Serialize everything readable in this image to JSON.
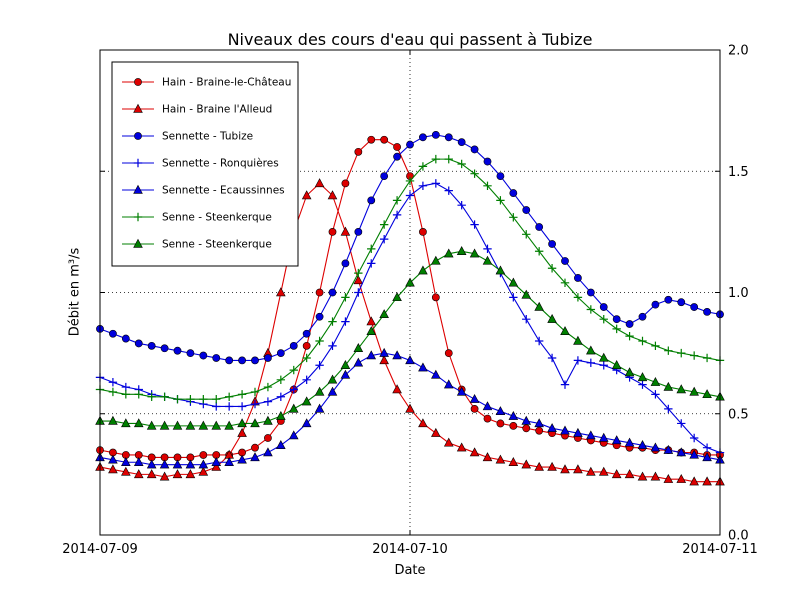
{
  "chart_data": {
    "type": "line",
    "title": "Niveaux des cours d'eau qui passent à Tubize",
    "xlabel": "Date",
    "ylabel": "Débit en m³/s",
    "ylim": [
      0.0,
      2.0
    ],
    "yticks": [
      0.0,
      0.5,
      1.0,
      1.5,
      2.0
    ],
    "ytick_labels": [
      "0.0",
      "0.5",
      "1.0",
      "1.5",
      "2.0"
    ],
    "ytick_label_side": "right",
    "xtick_labels": [
      "2014-07-09",
      "2014-07-10",
      "2014-07-11"
    ],
    "xtick_positions_hours": [
      0,
      24,
      48
    ],
    "x_start": "2014-07-09 00:00",
    "x_unit": "hours",
    "grid": {
      "style": "dotted",
      "vertical_at_hours": [
        24
      ],
      "horizontal_at": [
        0.5,
        1.0,
        1.5
      ]
    },
    "legend": {
      "position": "upper-left",
      "border_color": "#000000",
      "background": "#ffffff"
    },
    "colors": {
      "red": "#dd0000",
      "blue": "#0000dd",
      "green": "#007f00",
      "axis": "#000000",
      "background": "#ffffff"
    },
    "x_hours": [
      0,
      1,
      2,
      3,
      4,
      5,
      6,
      7,
      8,
      9,
      10,
      11,
      12,
      13,
      14,
      15,
      16,
      17,
      18,
      19,
      20,
      21,
      22,
      23,
      24,
      25,
      26,
      27,
      28,
      29,
      30,
      31,
      32,
      33,
      34,
      35,
      36,
      37,
      38,
      39,
      40,
      41,
      42,
      43,
      44,
      45,
      46,
      47,
      48
    ],
    "series": [
      {
        "name": "Hain - Braine-le-Château",
        "color": "#dd0000",
        "marker": "circle",
        "values": [
          0.35,
          0.34,
          0.33,
          0.33,
          0.32,
          0.32,
          0.32,
          0.32,
          0.33,
          0.33,
          0.33,
          0.34,
          0.36,
          0.4,
          0.47,
          0.6,
          0.78,
          1.0,
          1.25,
          1.45,
          1.58,
          1.63,
          1.63,
          1.6,
          1.48,
          1.25,
          0.98,
          0.75,
          0.6,
          0.52,
          0.48,
          0.46,
          0.45,
          0.44,
          0.43,
          0.42,
          0.41,
          0.4,
          0.39,
          0.38,
          0.37,
          0.36,
          0.36,
          0.35,
          0.35,
          0.34,
          0.34,
          0.33,
          0.33
        ]
      },
      {
        "name": "Hain - Braine l'Alleud",
        "color": "#dd0000",
        "marker": "triangle",
        "values": [
          0.28,
          0.27,
          0.26,
          0.25,
          0.25,
          0.24,
          0.25,
          0.25,
          0.26,
          0.28,
          0.33,
          0.42,
          0.55,
          0.75,
          1.0,
          1.25,
          1.4,
          1.45,
          1.4,
          1.25,
          1.05,
          0.88,
          0.72,
          0.6,
          0.52,
          0.46,
          0.42,
          0.38,
          0.36,
          0.34,
          0.32,
          0.31,
          0.3,
          0.29,
          0.28,
          0.28,
          0.27,
          0.27,
          0.26,
          0.26,
          0.25,
          0.25,
          0.24,
          0.24,
          0.23,
          0.23,
          0.22,
          0.22,
          0.22
        ]
      },
      {
        "name": "Sennette - Tubize",
        "color": "#0000dd",
        "marker": "circle",
        "values": [
          0.85,
          0.83,
          0.81,
          0.79,
          0.78,
          0.77,
          0.76,
          0.75,
          0.74,
          0.73,
          0.72,
          0.72,
          0.72,
          0.73,
          0.75,
          0.78,
          0.83,
          0.9,
          1.0,
          1.12,
          1.25,
          1.38,
          1.48,
          1.56,
          1.61,
          1.64,
          1.65,
          1.64,
          1.62,
          1.59,
          1.54,
          1.48,
          1.41,
          1.34,
          1.27,
          1.2,
          1.13,
          1.06,
          1.0,
          0.94,
          0.89,
          0.87,
          0.9,
          0.95,
          0.97,
          0.96,
          0.94,
          0.92,
          0.91
        ]
      },
      {
        "name": "Sennette - Ronquières",
        "color": "#0000dd",
        "marker": "plus",
        "values": [
          0.65,
          0.63,
          0.61,
          0.6,
          0.58,
          0.57,
          0.56,
          0.55,
          0.54,
          0.53,
          0.53,
          0.53,
          0.54,
          0.55,
          0.57,
          0.6,
          0.64,
          0.7,
          0.78,
          0.88,
          1.0,
          1.12,
          1.22,
          1.32,
          1.4,
          1.44,
          1.45,
          1.42,
          1.36,
          1.28,
          1.18,
          1.08,
          0.98,
          0.89,
          0.8,
          0.73,
          0.62,
          0.72,
          0.71,
          0.7,
          0.68,
          0.65,
          0.62,
          0.58,
          0.52,
          0.46,
          0.4,
          0.36,
          0.34
        ]
      },
      {
        "name": "Sennette - Ecaussinnes",
        "color": "#0000dd",
        "marker": "triangle",
        "values": [
          0.32,
          0.31,
          0.3,
          0.3,
          0.29,
          0.29,
          0.29,
          0.29,
          0.29,
          0.3,
          0.3,
          0.31,
          0.32,
          0.34,
          0.37,
          0.41,
          0.46,
          0.52,
          0.59,
          0.66,
          0.71,
          0.74,
          0.75,
          0.74,
          0.72,
          0.69,
          0.66,
          0.62,
          0.59,
          0.56,
          0.53,
          0.51,
          0.49,
          0.47,
          0.46,
          0.44,
          0.43,
          0.42,
          0.41,
          0.4,
          0.39,
          0.38,
          0.37,
          0.36,
          0.35,
          0.34,
          0.33,
          0.32,
          0.31
        ]
      },
      {
        "name": "Senne - Steenkerque",
        "color": "#007f00",
        "marker": "plus",
        "values": [
          0.6,
          0.59,
          0.58,
          0.58,
          0.57,
          0.57,
          0.56,
          0.56,
          0.56,
          0.56,
          0.57,
          0.58,
          0.59,
          0.61,
          0.64,
          0.68,
          0.73,
          0.8,
          0.88,
          0.98,
          1.08,
          1.18,
          1.28,
          1.38,
          1.46,
          1.52,
          1.55,
          1.55,
          1.53,
          1.49,
          1.44,
          1.38,
          1.31,
          1.24,
          1.17,
          1.1,
          1.04,
          0.98,
          0.93,
          0.89,
          0.85,
          0.82,
          0.8,
          0.78,
          0.76,
          0.75,
          0.74,
          0.73,
          0.72
        ]
      },
      {
        "name": "Senne - Steenkerque",
        "color": "#007f00",
        "marker": "triangle",
        "values": [
          0.47,
          0.47,
          0.46,
          0.46,
          0.45,
          0.45,
          0.45,
          0.45,
          0.45,
          0.45,
          0.45,
          0.46,
          0.46,
          0.47,
          0.49,
          0.52,
          0.55,
          0.59,
          0.64,
          0.7,
          0.77,
          0.84,
          0.91,
          0.98,
          1.04,
          1.09,
          1.13,
          1.16,
          1.17,
          1.16,
          1.13,
          1.09,
          1.04,
          0.99,
          0.94,
          0.89,
          0.84,
          0.8,
          0.76,
          0.73,
          0.7,
          0.67,
          0.65,
          0.63,
          0.61,
          0.6,
          0.59,
          0.58,
          0.57
        ]
      }
    ]
  }
}
